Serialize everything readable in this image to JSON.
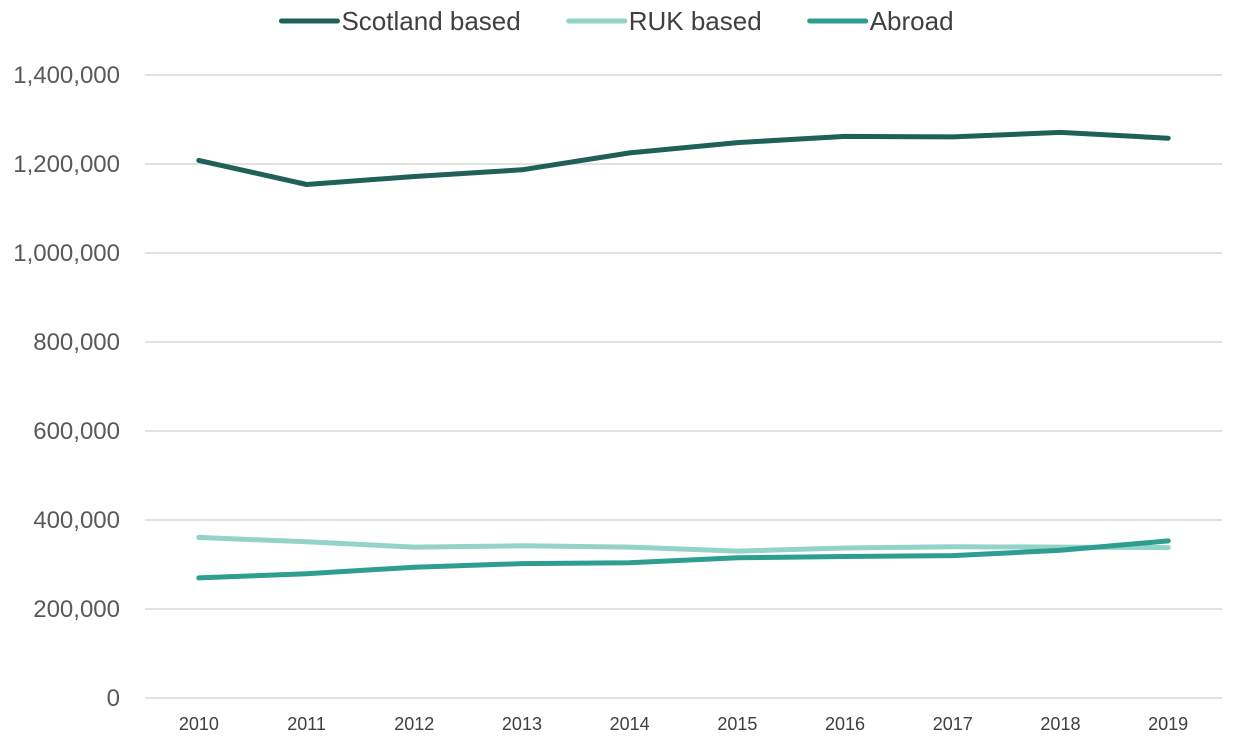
{
  "chart_data": {
    "type": "line",
    "title": "",
    "xlabel": "",
    "ylabel": "",
    "categories": [
      "2010",
      "2011",
      "2012",
      "2013",
      "2014",
      "2015",
      "2016",
      "2017",
      "2018",
      "2019"
    ],
    "ylim": [
      0,
      1400000
    ],
    "y_ticks": [
      0,
      200000,
      400000,
      600000,
      800000,
      1000000,
      1200000,
      1400000
    ],
    "y_tick_labels": [
      "0",
      "200,000",
      "400,000",
      "600,000",
      "800,000",
      "1,000,000",
      "1,200,000",
      "1,400,000"
    ],
    "grid": true,
    "legend_position": "top",
    "series": [
      {
        "name": "Scotland based",
        "color": "#1f6158",
        "values": [
          1208000,
          1154000,
          1172000,
          1187000,
          1225000,
          1248000,
          1262000,
          1261000,
          1271000,
          1258000
        ]
      },
      {
        "name": "RUK based",
        "color": "#93d3c8",
        "values": [
          361000,
          351000,
          339000,
          342000,
          339000,
          330000,
          337000,
          340000,
          339000,
          338000
        ]
      },
      {
        "name": "Abroad",
        "color": "#2d9e90",
        "values": [
          270000,
          279000,
          294000,
          302000,
          304000,
          315000,
          318000,
          320000,
          332000,
          353000
        ]
      }
    ]
  }
}
